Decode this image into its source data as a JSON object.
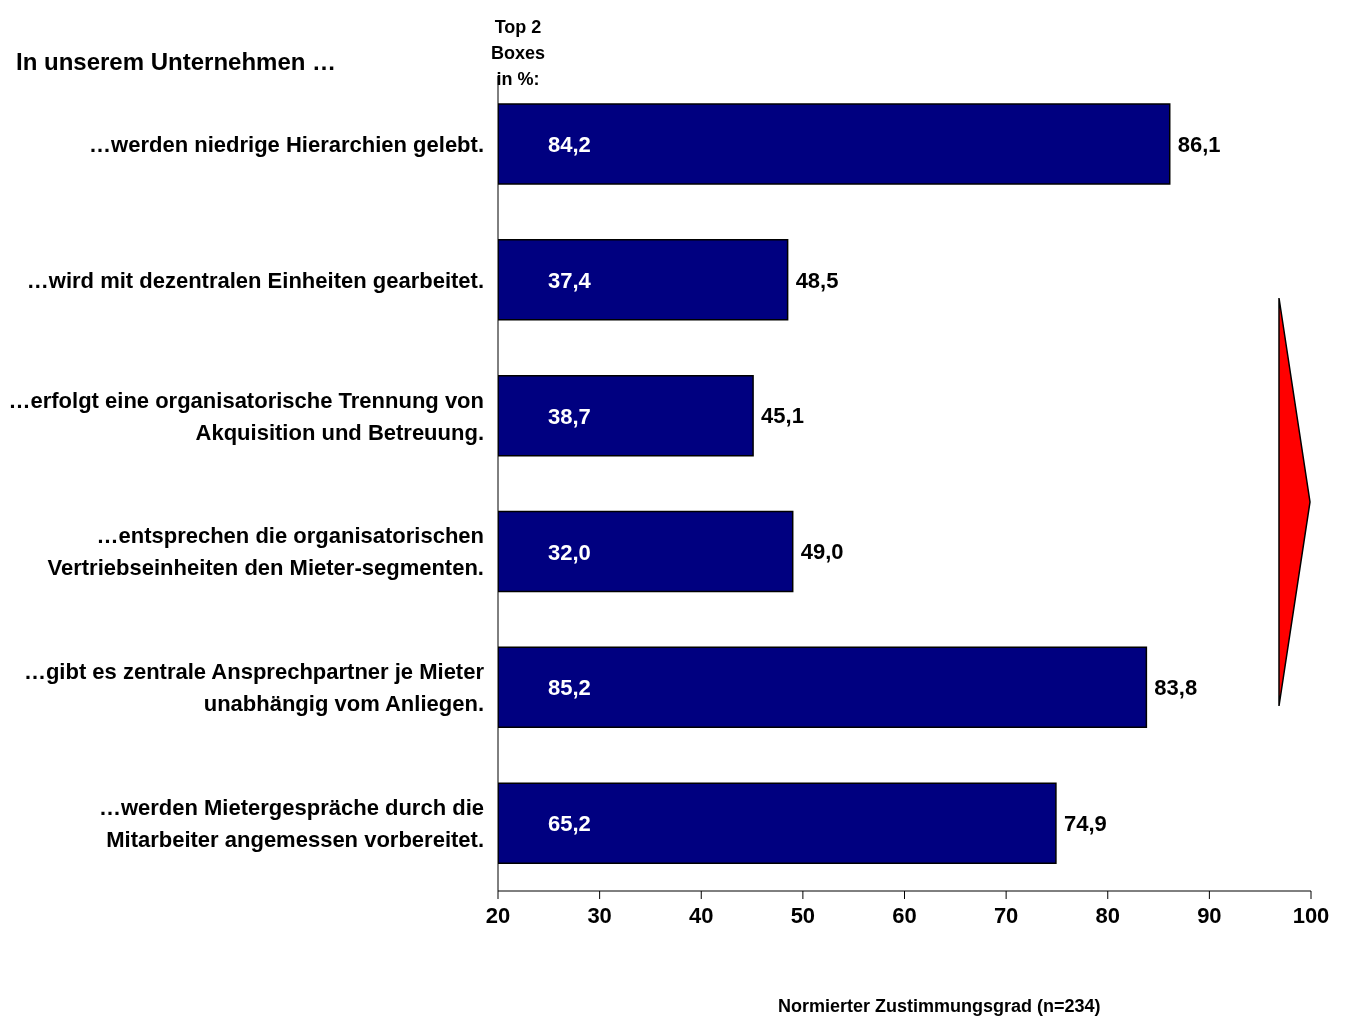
{
  "chart_data": {
    "type": "bar",
    "orientation": "horizontal",
    "title": "In unserem Unternehmen …",
    "xlabel": "Normierter Zustimmungsgrad (n=234)",
    "categories": [
      "…werden niedrige Hierarchien gelebt.",
      "…wird mit dezentralen Einheiten gearbeitet.",
      "…erfolgt eine organisatorische Trennung von Akquisition und Betreuung.",
      "…entsprechen die organisatorischen Vertriebseinheiten den Mieter-segmenten.",
      "…gibt es zentrale Ansprechpartner je Mieter unabhängig vom Anliegen.",
      "…werden Mietergespräche durch die Mitarbeiter angemessen vorbereitet."
    ],
    "values": [
      86.1,
      48.5,
      45.1,
      49.0,
      83.8,
      74.9
    ],
    "value_labels": [
      "86,1",
      "48,5",
      "45,1",
      "49,0",
      "83,8",
      "74,9"
    ],
    "color": "#000080",
    "xlim": [
      20,
      100
    ],
    "xticks": [
      20,
      30,
      40,
      50,
      60,
      70,
      80,
      90,
      100
    ],
    "grid": false,
    "legend": false,
    "annotations": [
      "Top 2 Boxes in %:",
      "84,2",
      "37,4",
      "38,7",
      "32,0",
      "85,2",
      "65,2"
    ]
  }
}
